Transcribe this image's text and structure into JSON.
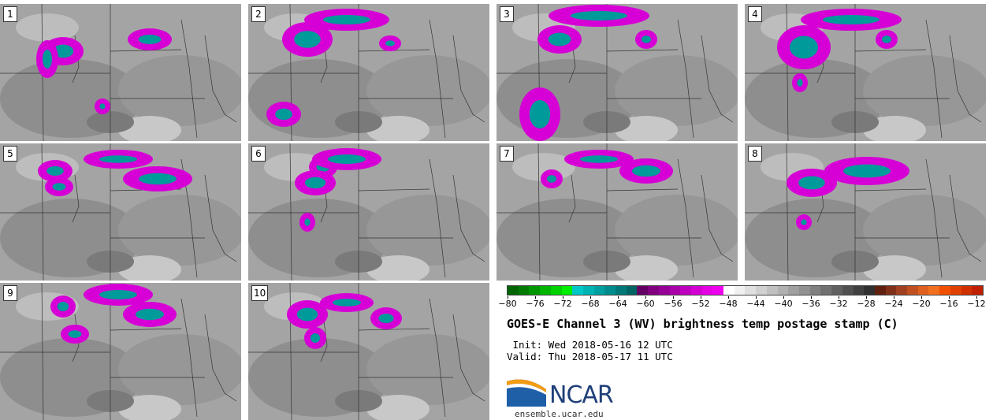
{
  "panels": [
    {
      "label": "1"
    },
    {
      "label": "2"
    },
    {
      "label": "3"
    },
    {
      "label": "4"
    },
    {
      "label": "5"
    },
    {
      "label": "6"
    },
    {
      "label": "7"
    },
    {
      "label": "8"
    },
    {
      "label": "9"
    },
    {
      "label": "10"
    }
  ],
  "colorbar": {
    "ticks": [
      "−80",
      "−76",
      "−72",
      "−68",
      "−64",
      "−60",
      "−56",
      "−52",
      "−48",
      "−44",
      "−40",
      "−36",
      "−32",
      "−28",
      "−24",
      "−20",
      "−16",
      "−12"
    ],
    "colors": [
      "#006400",
      "#007a00",
      "#009600",
      "#00b400",
      "#00d200",
      "#00ee00",
      "#00c8c8",
      "#00b4b4",
      "#00a0a0",
      "#008c8c",
      "#007878",
      "#006464",
      "#640064",
      "#800080",
      "#960096",
      "#aa00aa",
      "#be00be",
      "#d200d2",
      "#e600e6",
      "#f000f0",
      "#ffffff",
      "#f0f0f0",
      "#e0e0e0",
      "#d0d0d0",
      "#c0c0c0",
      "#b0b0b0",
      "#a0a0a0",
      "#909090",
      "#808080",
      "#707070",
      "#606060",
      "#505050",
      "#404040",
      "#303030",
      "#602010",
      "#803018",
      "#a04020",
      "#c05020",
      "#e06020",
      "#f07020",
      "#f05000",
      "#e04000",
      "#d03000",
      "#c02000"
    ]
  },
  "title": "GOES-E Channel 3 (WV) brightness temp postage stamp (C)",
  "init": " Init: Wed 2018-05-16 12 UTC",
  "valid": "Valid: Thu 2018-05-17 11 UTC",
  "logo": {
    "text": "NCAR",
    "url": "ensemble.ucar.edu"
  }
}
